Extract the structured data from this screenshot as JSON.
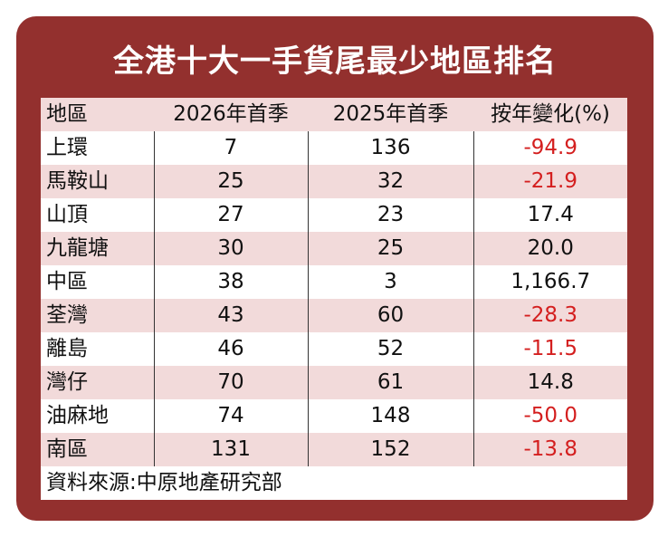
{
  "title": "全港十大一手貨尾最少地區排名",
  "table": {
    "header": [
      "地區",
      "2026年首季",
      "2025年首季",
      "按年變化(%)"
    ],
    "rows": [
      [
        "上環",
        "7",
        "136",
        "-94.9"
      ],
      [
        "馬鞍山",
        "25",
        "32",
        "-21.9"
      ],
      [
        "山頂",
        "27",
        "23",
        "17.4"
      ],
      [
        "九龍塘",
        "30",
        "25",
        "20.0"
      ],
      [
        "中區",
        "38",
        "3",
        "1,166.7"
      ],
      [
        "荃灣",
        "43",
        "60",
        "-28.3"
      ],
      [
        "離島",
        "46",
        "52",
        "-11.5"
      ],
      [
        "灣仔",
        "70",
        "61",
        "14.8"
      ],
      [
        "油麻地",
        "74",
        "148",
        "-50.0"
      ],
      [
        "南區",
        "131",
        "152",
        "-13.8"
      ]
    ]
  },
  "source": "資料來源:中原地產研究部"
}
